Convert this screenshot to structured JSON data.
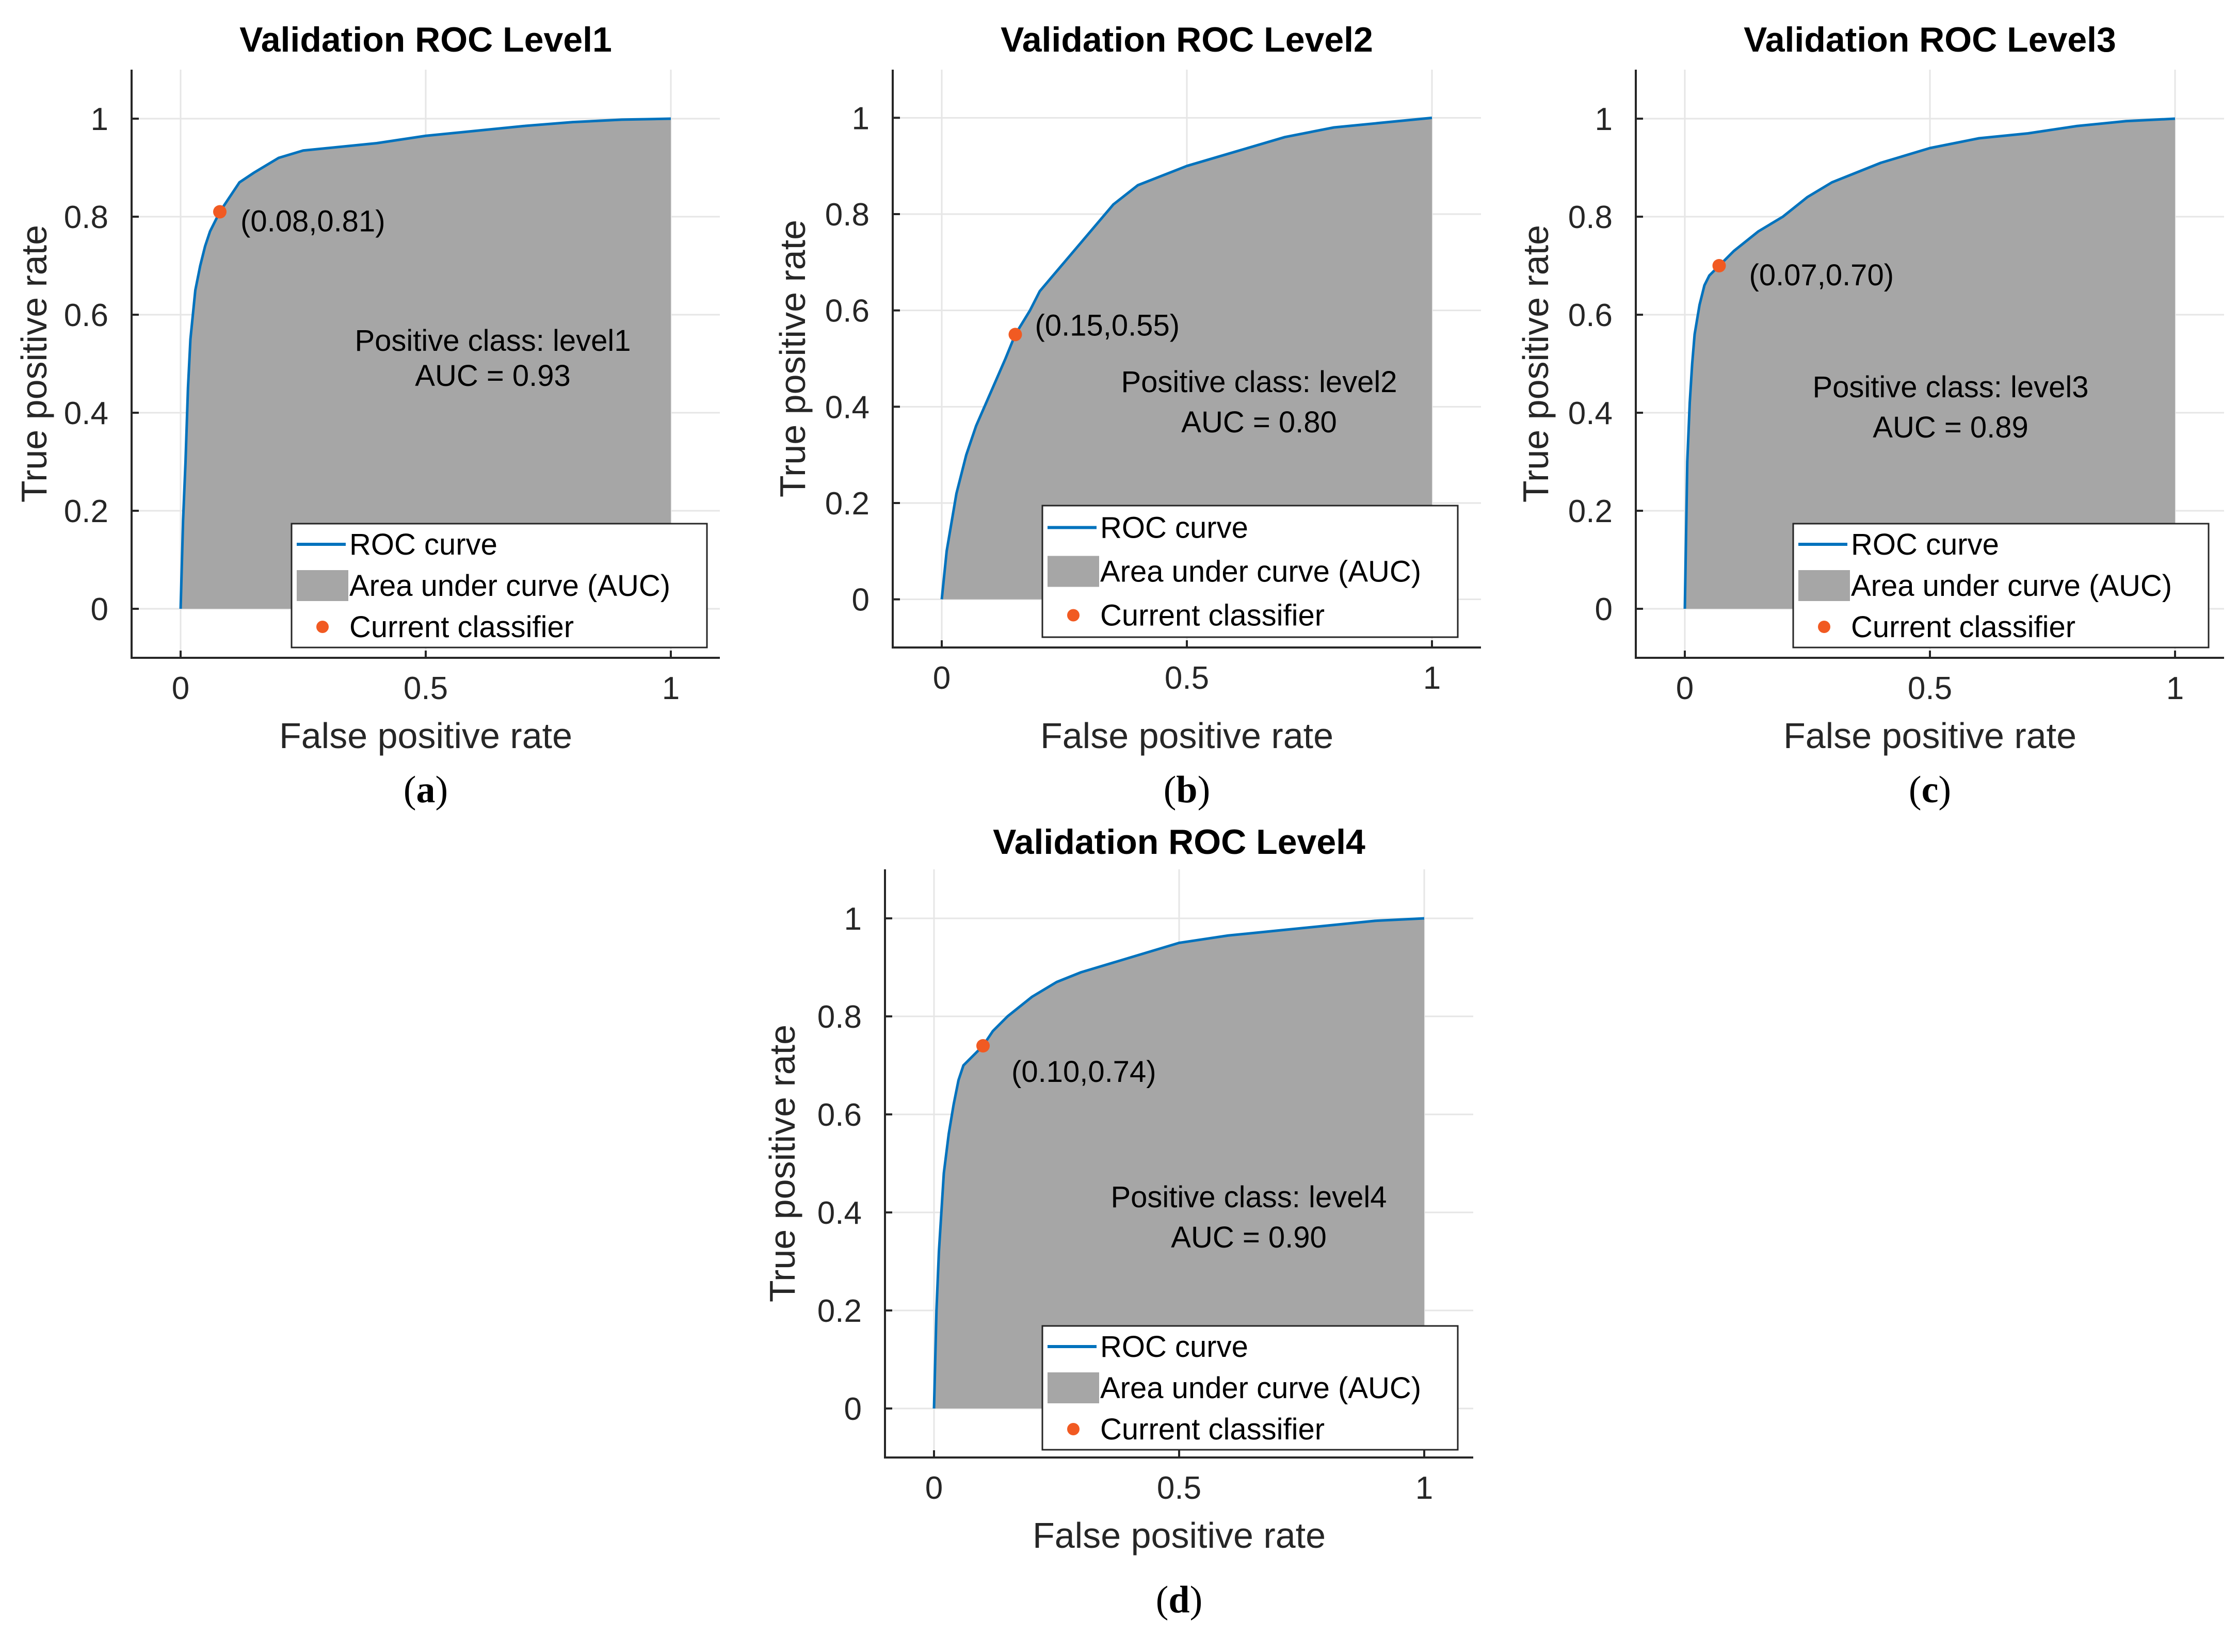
{
  "colors": {
    "roc_line": "#0072BD",
    "auc_fill": "#A6A6A6",
    "classifier_point": "#F15A22",
    "axis": "#262626",
    "grid": "#E6E6E6",
    "legend_border": "#262626"
  },
  "legend": {
    "roc_curve": "ROC curve",
    "auc_area": "Area under curve (AUC)",
    "current_classifier": "Current classifier"
  },
  "chart_data": [
    {
      "panel": "a",
      "panel_label": "a",
      "type": "area",
      "title": "Validation ROC Level1",
      "xlabel": "False positive rate",
      "ylabel": "True positive rate",
      "xlim": [
        -0.1,
        1.1
      ],
      "ylim": [
        -0.1,
        1.1
      ],
      "xticks": [
        0,
        0.5,
        1
      ],
      "xtick_labels": [
        "0",
        "0.5",
        "1"
      ],
      "yticks": [
        0,
        0.2,
        0.4,
        0.6,
        0.8,
        1
      ],
      "ytick_labels": [
        "0",
        "0.2",
        "0.4",
        "0.6",
        "0.8",
        "1"
      ],
      "grid": true,
      "roc_x": [
        0,
        0.005,
        0.01,
        0.015,
        0.02,
        0.025,
        0.03,
        0.04,
        0.05,
        0.06,
        0.08,
        0.1,
        0.12,
        0.15,
        0.2,
        0.25,
        0.3,
        0.4,
        0.5,
        0.6,
        0.7,
        0.8,
        0.9,
        1.0
      ],
      "roc_y": [
        0,
        0.18,
        0.3,
        0.45,
        0.55,
        0.6,
        0.65,
        0.7,
        0.74,
        0.77,
        0.81,
        0.84,
        0.87,
        0.89,
        0.92,
        0.935,
        0.94,
        0.95,
        0.965,
        0.975,
        0.985,
        0.993,
        0.998,
        1.0
      ],
      "classifier_point": [
        0.08,
        0.81
      ],
      "classifier_label": "(0.08,0.81)",
      "positive_class": "Positive class: level1",
      "auc_text": "AUC = 0.93"
    },
    {
      "panel": "b",
      "panel_label": "b",
      "type": "area",
      "title": "Validation ROC Level2",
      "xlabel": "False positive rate",
      "ylabel": "True positive rate",
      "xlim": [
        -0.1,
        1.1
      ],
      "ylim": [
        -0.1,
        1.1
      ],
      "xticks": [
        0,
        0.5,
        1
      ],
      "xtick_labels": [
        "0",
        "0.5",
        "1"
      ],
      "yticks": [
        0,
        0.2,
        0.4,
        0.6,
        0.8,
        1
      ],
      "ytick_labels": [
        "0",
        "0.2",
        "0.4",
        "0.6",
        "0.8",
        "1"
      ],
      "grid": true,
      "roc_x": [
        0,
        0.01,
        0.02,
        0.03,
        0.05,
        0.07,
        0.1,
        0.13,
        0.15,
        0.18,
        0.2,
        0.25,
        0.3,
        0.35,
        0.4,
        0.45,
        0.5,
        0.6,
        0.7,
        0.8,
        0.9,
        1.0
      ],
      "roc_y": [
        0,
        0.1,
        0.16,
        0.22,
        0.3,
        0.36,
        0.43,
        0.5,
        0.55,
        0.6,
        0.64,
        0.7,
        0.76,
        0.82,
        0.86,
        0.88,
        0.9,
        0.93,
        0.96,
        0.98,
        0.99,
        1.0
      ],
      "classifier_point": [
        0.15,
        0.55
      ],
      "classifier_label": "(0.15,0.55)",
      "positive_class": "Positive class: level2",
      "auc_text": "AUC = 0.80"
    },
    {
      "panel": "c",
      "panel_label": "c",
      "type": "area",
      "title": "Validation ROC Level3",
      "xlabel": "False positive rate",
      "ylabel": "True positive rate",
      "xlim": [
        -0.1,
        1.1
      ],
      "ylim": [
        -0.1,
        1.1
      ],
      "xticks": [
        0,
        0.5,
        1
      ],
      "xtick_labels": [
        "0",
        "0.5",
        "1"
      ],
      "yticks": [
        0,
        0.2,
        0.4,
        0.6,
        0.8,
        1
      ],
      "ytick_labels": [
        "0",
        "0.2",
        "0.4",
        "0.6",
        "0.8",
        "1"
      ],
      "grid": true,
      "roc_x": [
        0,
        0.005,
        0.01,
        0.015,
        0.02,
        0.03,
        0.04,
        0.05,
        0.07,
        0.1,
        0.15,
        0.2,
        0.25,
        0.3,
        0.35,
        0.4,
        0.5,
        0.6,
        0.7,
        0.8,
        0.9,
        1.0
      ],
      "roc_y": [
        0,
        0.3,
        0.42,
        0.5,
        0.56,
        0.62,
        0.66,
        0.68,
        0.7,
        0.73,
        0.77,
        0.8,
        0.84,
        0.87,
        0.89,
        0.91,
        0.94,
        0.96,
        0.97,
        0.985,
        0.995,
        1.0
      ],
      "classifier_point": [
        0.07,
        0.7
      ],
      "classifier_label": "(0.07,0.70)",
      "positive_class": "Positive class: level3",
      "auc_text": "AUC = 0.89"
    },
    {
      "panel": "d",
      "panel_label": "d",
      "type": "area",
      "title": "Validation ROC Level4",
      "xlabel": "False positive rate",
      "ylabel": "True positive rate",
      "xlim": [
        -0.1,
        1.1
      ],
      "ylim": [
        -0.1,
        1.1
      ],
      "xticks": [
        0,
        0.5,
        1
      ],
      "xtick_labels": [
        "0",
        "0.5",
        "1"
      ],
      "yticks": [
        0,
        0.2,
        0.4,
        0.6,
        0.8,
        1
      ],
      "ytick_labels": [
        "0",
        "0.2",
        "0.4",
        "0.6",
        "0.8",
        "1"
      ],
      "grid": true,
      "roc_x": [
        0,
        0.005,
        0.01,
        0.015,
        0.02,
        0.03,
        0.04,
        0.05,
        0.06,
        0.08,
        0.1,
        0.12,
        0.15,
        0.2,
        0.25,
        0.3,
        0.4,
        0.5,
        0.6,
        0.7,
        0.8,
        0.9,
        1.0
      ],
      "roc_y": [
        0,
        0.2,
        0.32,
        0.4,
        0.48,
        0.56,
        0.62,
        0.67,
        0.7,
        0.72,
        0.74,
        0.77,
        0.8,
        0.84,
        0.87,
        0.89,
        0.92,
        0.95,
        0.965,
        0.975,
        0.985,
        0.995,
        1.0
      ],
      "classifier_point": [
        0.1,
        0.74
      ],
      "classifier_label": "(0.10,0.74)",
      "positive_class": "Positive class: level4",
      "auc_text": "AUC = 0.90"
    }
  ]
}
